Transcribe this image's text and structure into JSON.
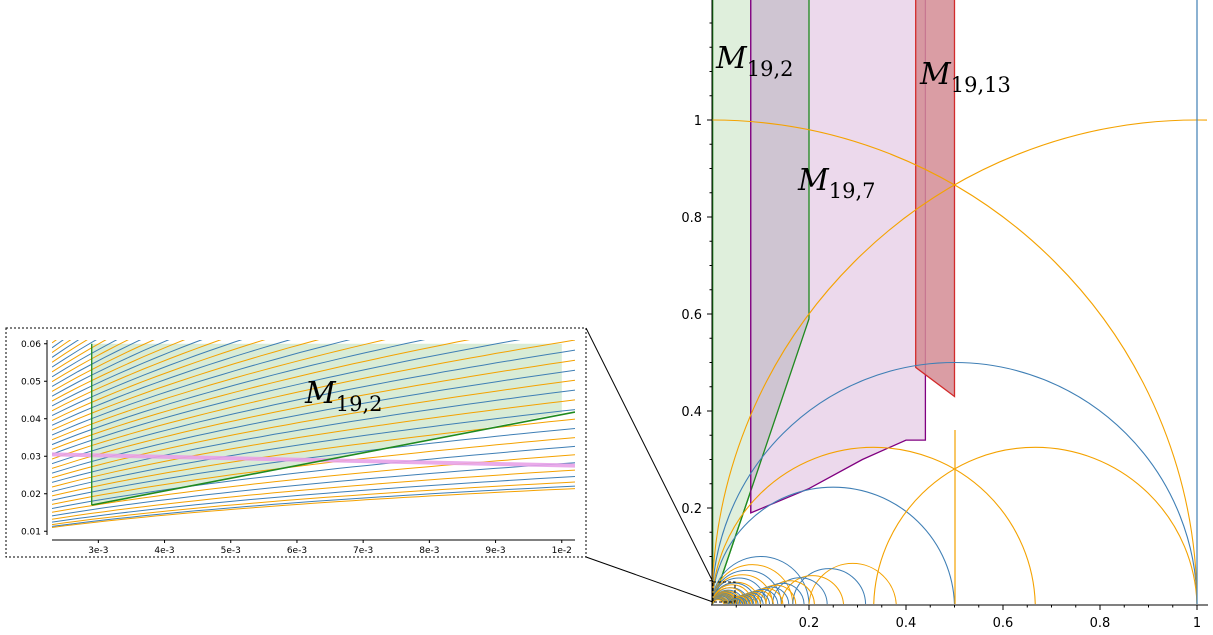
{
  "colors": {
    "blue": "#3f7fb5",
    "orange": "#f4a200",
    "green_region": "#d9ecd6",
    "green_edge": "#1f8a1f",
    "pink_region": "#ead5ea",
    "purple_edge": "#800080",
    "overlap_region": "#cfc5d2",
    "red_region": "#d48c94",
    "red_edge": "#d22b2b",
    "band": "#e8a2e8"
  },
  "labels": {
    "m2": {
      "script": "M",
      "sub": "19,2"
    },
    "m7": {
      "script": "M",
      "sub": "19,7"
    },
    "m13": {
      "script": "M",
      "sub": "19,13"
    },
    "zoom_m2": {
      "script": "M",
      "sub": "19,2"
    }
  },
  "chart_data": [
    {
      "type": "line",
      "xlim": [
        0,
        1
      ],
      "ylim": [
        0,
        1.25
      ],
      "x_ticks": [
        "0.2",
        "0.4",
        "0.6",
        "0.8",
        "1"
      ],
      "y_ticks": [
        "0.2",
        "0.4",
        "0.6",
        "0.8",
        "1"
      ],
      "x_tick_values": [
        0.2,
        0.4,
        0.6,
        0.8,
        1
      ],
      "y_tick_values": [
        0.2,
        0.4,
        0.6,
        0.8,
        1
      ],
      "regions": [
        {
          "name": "M19,2",
          "polygon": [
            [
              0.0007,
              1.25
            ],
            [
              0.0007,
              0.001
            ],
            [
              0.2,
              0.59
            ],
            [
              0.2,
              1.25
            ]
          ]
        },
        {
          "name": "M19,7",
          "polygon": [
            [
              0.08,
              1.25
            ],
            [
              0.08,
              0.19
            ],
            [
              0.2,
              0.24
            ],
            [
              0.31,
              0.3
            ],
            [
              0.4,
              0.34
            ],
            [
              0.44,
              0.34
            ],
            [
              0.44,
              1.25
            ]
          ]
        },
        {
          "name": "M19,13",
          "polygon": [
            [
              0.42,
              1.25
            ],
            [
              0.42,
              0.49
            ],
            [
              0.5,
              0.43
            ],
            [
              0.5,
              1.25
            ]
          ]
        }
      ],
      "arcs": [
        {
          "center": 0.5,
          "radius": 0.5,
          "color": "blue"
        },
        {
          "center": 0.25,
          "radius": 0.25,
          "color": "blue"
        },
        {
          "center": 1.0,
          "radius": 1.0,
          "color": "orange"
        },
        {
          "center": 0.0,
          "radius": 1.0,
          "color": "orange"
        },
        {
          "center": 0.3333,
          "radius": 0.3333,
          "color": "orange"
        },
        {
          "center": 0.6667,
          "radius": 0.3333,
          "color": "orange"
        }
      ],
      "vertical_lines": [
        {
          "x": 0.5,
          "color": "orange"
        },
        {
          "x": 1.0,
          "color": "blue"
        }
      ]
    },
    {
      "type": "line",
      "xlim": [
        0.0023,
        0.0102
      ],
      "ylim": [
        0.009,
        0.061
      ],
      "x_ticks": [
        "3e-3",
        "4e-3",
        "5e-3",
        "6e-3",
        "7e-3",
        "8e-3",
        "9e-3",
        "1e-2"
      ],
      "y_ticks": [
        "0.01",
        "0.02",
        "0.03",
        "0.04",
        "0.05",
        "0.06"
      ],
      "x_tick_values": [
        0.003,
        0.004,
        0.005,
        0.006,
        0.007,
        0.008,
        0.009,
        0.01
      ],
      "y_tick_values": [
        0.01,
        0.02,
        0.03,
        0.04,
        0.05,
        0.06
      ],
      "regions": [
        {
          "name": "M19,2",
          "polygon": [
            [
              0.0029,
              0.06
            ],
            [
              0.0029,
              0.017
            ],
            [
              0.01,
              0.0415
            ],
            [
              0.01,
              0.06
            ]
          ]
        }
      ],
      "highlight_band": {
        "y_start": 0.0305,
        "y_end": 0.0275
      }
    }
  ]
}
